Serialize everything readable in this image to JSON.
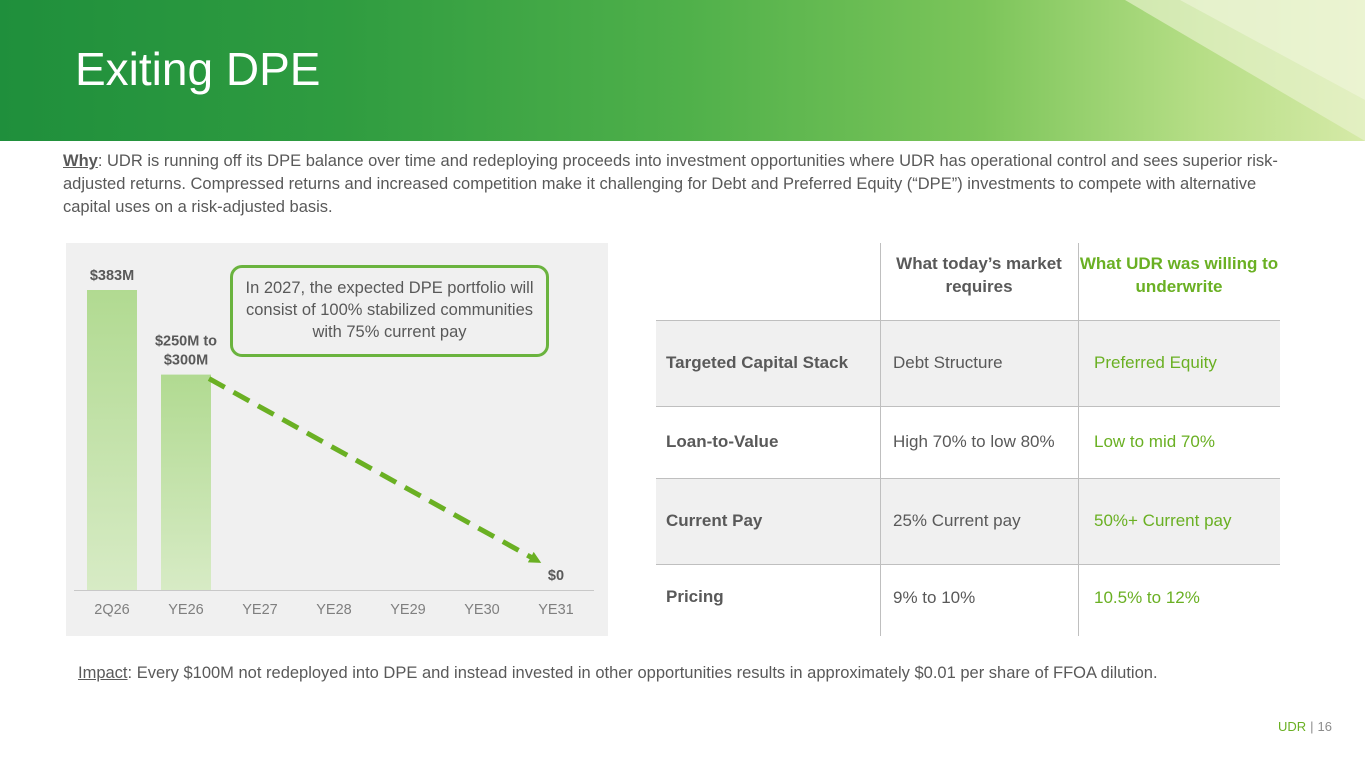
{
  "slide": {
    "title": "Exiting DPE",
    "why_label": "Why",
    "why_text": ": UDR is running off its DPE balance over time and redeploying proceeds into investment opportunities where UDR has operational control and sees superior risk-adjusted returns. Compressed returns and increased competition make it challenging for Debt and Preferred Equity (“DPE”) investments to compete with alternative capital uses on a risk-adjusted basis.",
    "impact_label": "Impact",
    "impact_text": ": Every $100M not redeployed into DPE and instead invested in other opportunities results in approximately $0.01 per share of FFOA dilution.",
    "callout": "In 2027, the expected DPE portfolio will consist of 100% stabilized communities with 75% current pay",
    "footer_brand": "UDR",
    "footer_sep": "|",
    "footer_page": "16"
  },
  "colors": {
    "brand_green": "#6ab023",
    "bar_top": "#b1da91",
    "bar_bottom": "#d7ebc5",
    "arrow_green": "#6ab023"
  },
  "chart_data": {
    "type": "bar",
    "categories": [
      "2Q26",
      "YE26",
      "YE27",
      "YE28",
      "YE29",
      "YE30",
      "YE31"
    ],
    "values": [
      383,
      275,
      null,
      null,
      null,
      null,
      0
    ],
    "data_labels": [
      "$383M",
      "$250M to $300M",
      "",
      "",
      "",
      "",
      "$0"
    ],
    "unit": "$M",
    "trend_arrow": {
      "from": "YE26",
      "to": "YE31",
      "style": "dashed"
    }
  },
  "table": {
    "headers": [
      "",
      "What today’s market requires",
      "What UDR was willing to underwrite"
    ],
    "rows": [
      {
        "label": "Targeted Capital Stack",
        "market": "Debt Structure",
        "udr": "Preferred Equity"
      },
      {
        "label": "Loan-to-Value",
        "market": "High 70% to low 80%",
        "udr": "Low to mid 70%"
      },
      {
        "label": "Current Pay",
        "market": "25% Current pay",
        "udr": "50%+ Current pay"
      },
      {
        "label": "Pricing",
        "market": "9% to 10%",
        "udr": "10.5% to 12%"
      }
    ]
  }
}
